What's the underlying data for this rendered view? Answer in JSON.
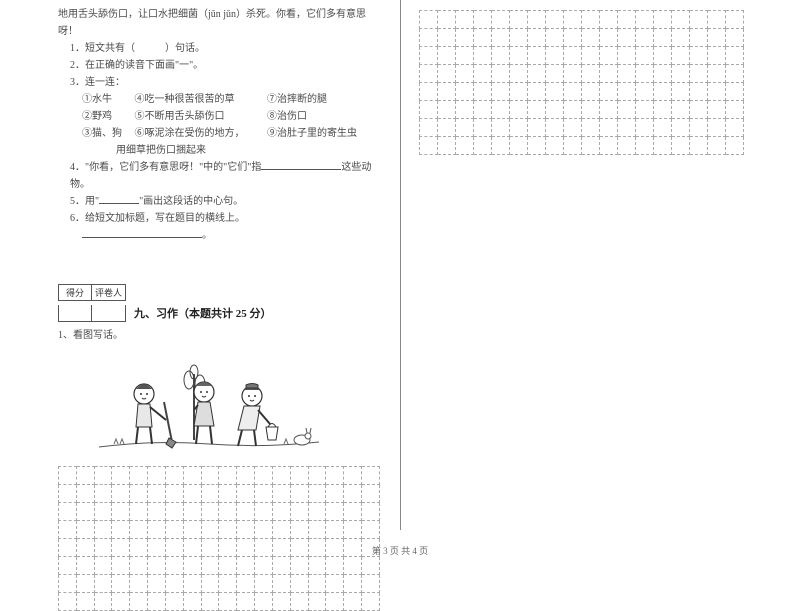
{
  "passage_intro": "地用舌头舔伤口，让口水把细菌（jūn  jǔn）杀死。你看，它们多有意思呀！",
  "questions": {
    "q1": "1．短文共有（　　　）句话。",
    "q2": "2．在正确的读音下面画\"一\"。",
    "q3": "3．连一连：",
    "q3_rows": [
      {
        "a": "①水牛",
        "b": "④吃一种很苦很苦的草",
        "c": "⑦治摔断的腿"
      },
      {
        "a": "②野鸡",
        "b": "⑤不断用舌头舔伤口",
        "c": "⑧治伤口"
      },
      {
        "a": "③猫、狗",
        "b": "⑥啄泥涂在受伤的地方，",
        "c": "⑨治肚子里的寄生虫"
      }
    ],
    "q3_tail": "用细草把伤口捆起来",
    "q4_pre": "4．\"你看，它们多有意思呀！\"中的\"它们\"指",
    "q4_post": "这些动物。",
    "q5_pre": "5．用\"",
    "q5_post": "\"画出这段话的中心句。",
    "q6": "6．给短文加标题，写在题目的横线上。"
  },
  "score_box": {
    "left": "得分",
    "right": "评卷人"
  },
  "section9": {
    "title": "九、习作（本题共计 25 分）",
    "q1": "1、看图写话。"
  },
  "footer": "第 3 页  共 4 页",
  "grid": {
    "left_rows": 8,
    "left_cols": 18,
    "right_rows": 8,
    "right_cols": 18
  },
  "colors": {
    "text": "#4a4a4a",
    "border": "#555555",
    "dash": "#aaaaaa"
  }
}
